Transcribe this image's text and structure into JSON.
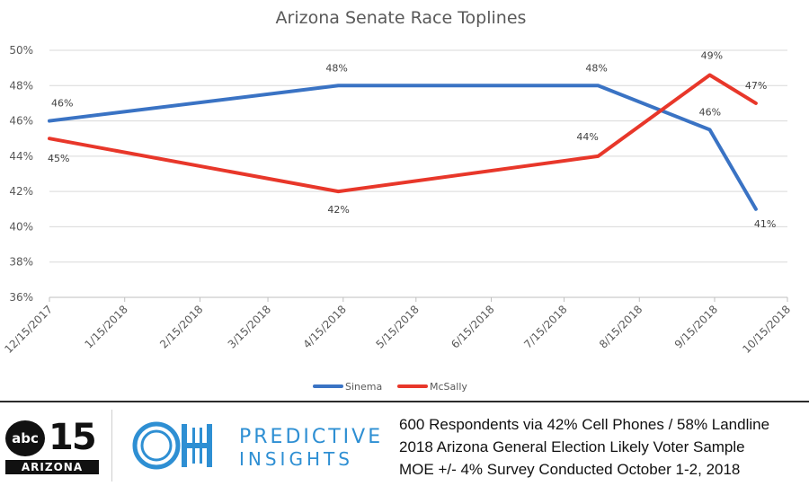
{
  "chart_data": {
    "type": "line",
    "title": "Arizona Senate Race Toplines",
    "x_ticks": [
      "12/15/2017",
      "1/15/2018",
      "2/15/2018",
      "3/15/2018",
      "4/15/2018",
      "5/15/2018",
      "6/15/2018",
      "7/15/2018",
      "8/15/2018",
      "9/15/2018",
      "10/15/2018"
    ],
    "y_ticks": [
      "50%",
      "48%",
      "46%",
      "44%",
      "42%",
      "40%",
      "38%",
      "36%"
    ],
    "ylim": [
      36,
      50
    ],
    "xlim": [
      "12/15/2017",
      "10/15/2018"
    ],
    "grid": "horizontal",
    "legend_position": "bottom",
    "series": [
      {
        "name": "Sinema",
        "color": "#3a73c4",
        "points": [
          {
            "date": "12/15/2017",
            "value": 46,
            "label": "46%"
          },
          {
            "date": "4/13/2018",
            "value": 48,
            "label": "48%"
          },
          {
            "date": "7/29/2018",
            "value": 48,
            "label": "48%"
          },
          {
            "date": "9/13/2018",
            "value": 45.5,
            "label": "46%"
          },
          {
            "date": "10/2/2018",
            "value": 41,
            "label": "41%"
          }
        ]
      },
      {
        "name": "McSally",
        "color": "#e8372a",
        "points": [
          {
            "date": "12/15/2017",
            "value": 45,
            "label": "45%"
          },
          {
            "date": "4/13/2018",
            "value": 42,
            "label": "42%"
          },
          {
            "date": "7/29/2018",
            "value": 44,
            "label": "44%"
          },
          {
            "date": "9/13/2018",
            "value": 48.6,
            "label": "49%"
          },
          {
            "date": "10/2/2018",
            "value": 47,
            "label": "47%"
          }
        ]
      }
    ]
  },
  "footer": {
    "abc_logo": {
      "network": "abc",
      "channel": "15",
      "state": "ARIZONA"
    },
    "pi_logo": {
      "monogram": "OH",
      "name_line1": "PREDICTIVE",
      "name_line2": "INSIGHTS"
    },
    "notes": [
      "600 Respondents via 42% Cell Phones / 58% Landline",
      "2018 Arizona General Election Likely Voter Sample",
      "MOE +/- 4% Survey Conducted October 1-2, 2018"
    ]
  }
}
